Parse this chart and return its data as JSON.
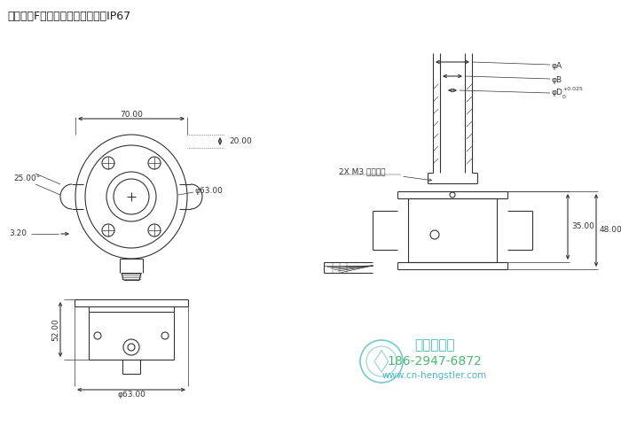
{
  "title": "轴安装＝F：轴套型，前夹紧环；IP67",
  "title_color": "#222222",
  "bg_color": "#ffffff",
  "line_color": "#333333",
  "watermark_color1": "#4ab8c1",
  "watermark_color2": "#4db870",
  "watermark_text1": "西安德伍拓",
  "watermark_text2": "186-2947-6872",
  "watermark_text3": "www.cn-hengstler.com",
  "dim_70": "70.00",
  "dim_phi63_top": "φ63.00",
  "dim_20": "20.00",
  "dim_25": "25.00°",
  "dim_3_20": "3.20",
  "dim_52": "52.00",
  "dim_phi63_bot": "φ63.00",
  "dim_phiA": "φA",
  "dim_phiB": "φB",
  "dim_phiD": "φD",
  "dim_phiD_tol": "+0.025",
  "dim_phiD_tol2": "0",
  "dim_2xm3": "2X M3 固定螺钉",
  "dim_35": "35.00",
  "dim_48": "48.00"
}
